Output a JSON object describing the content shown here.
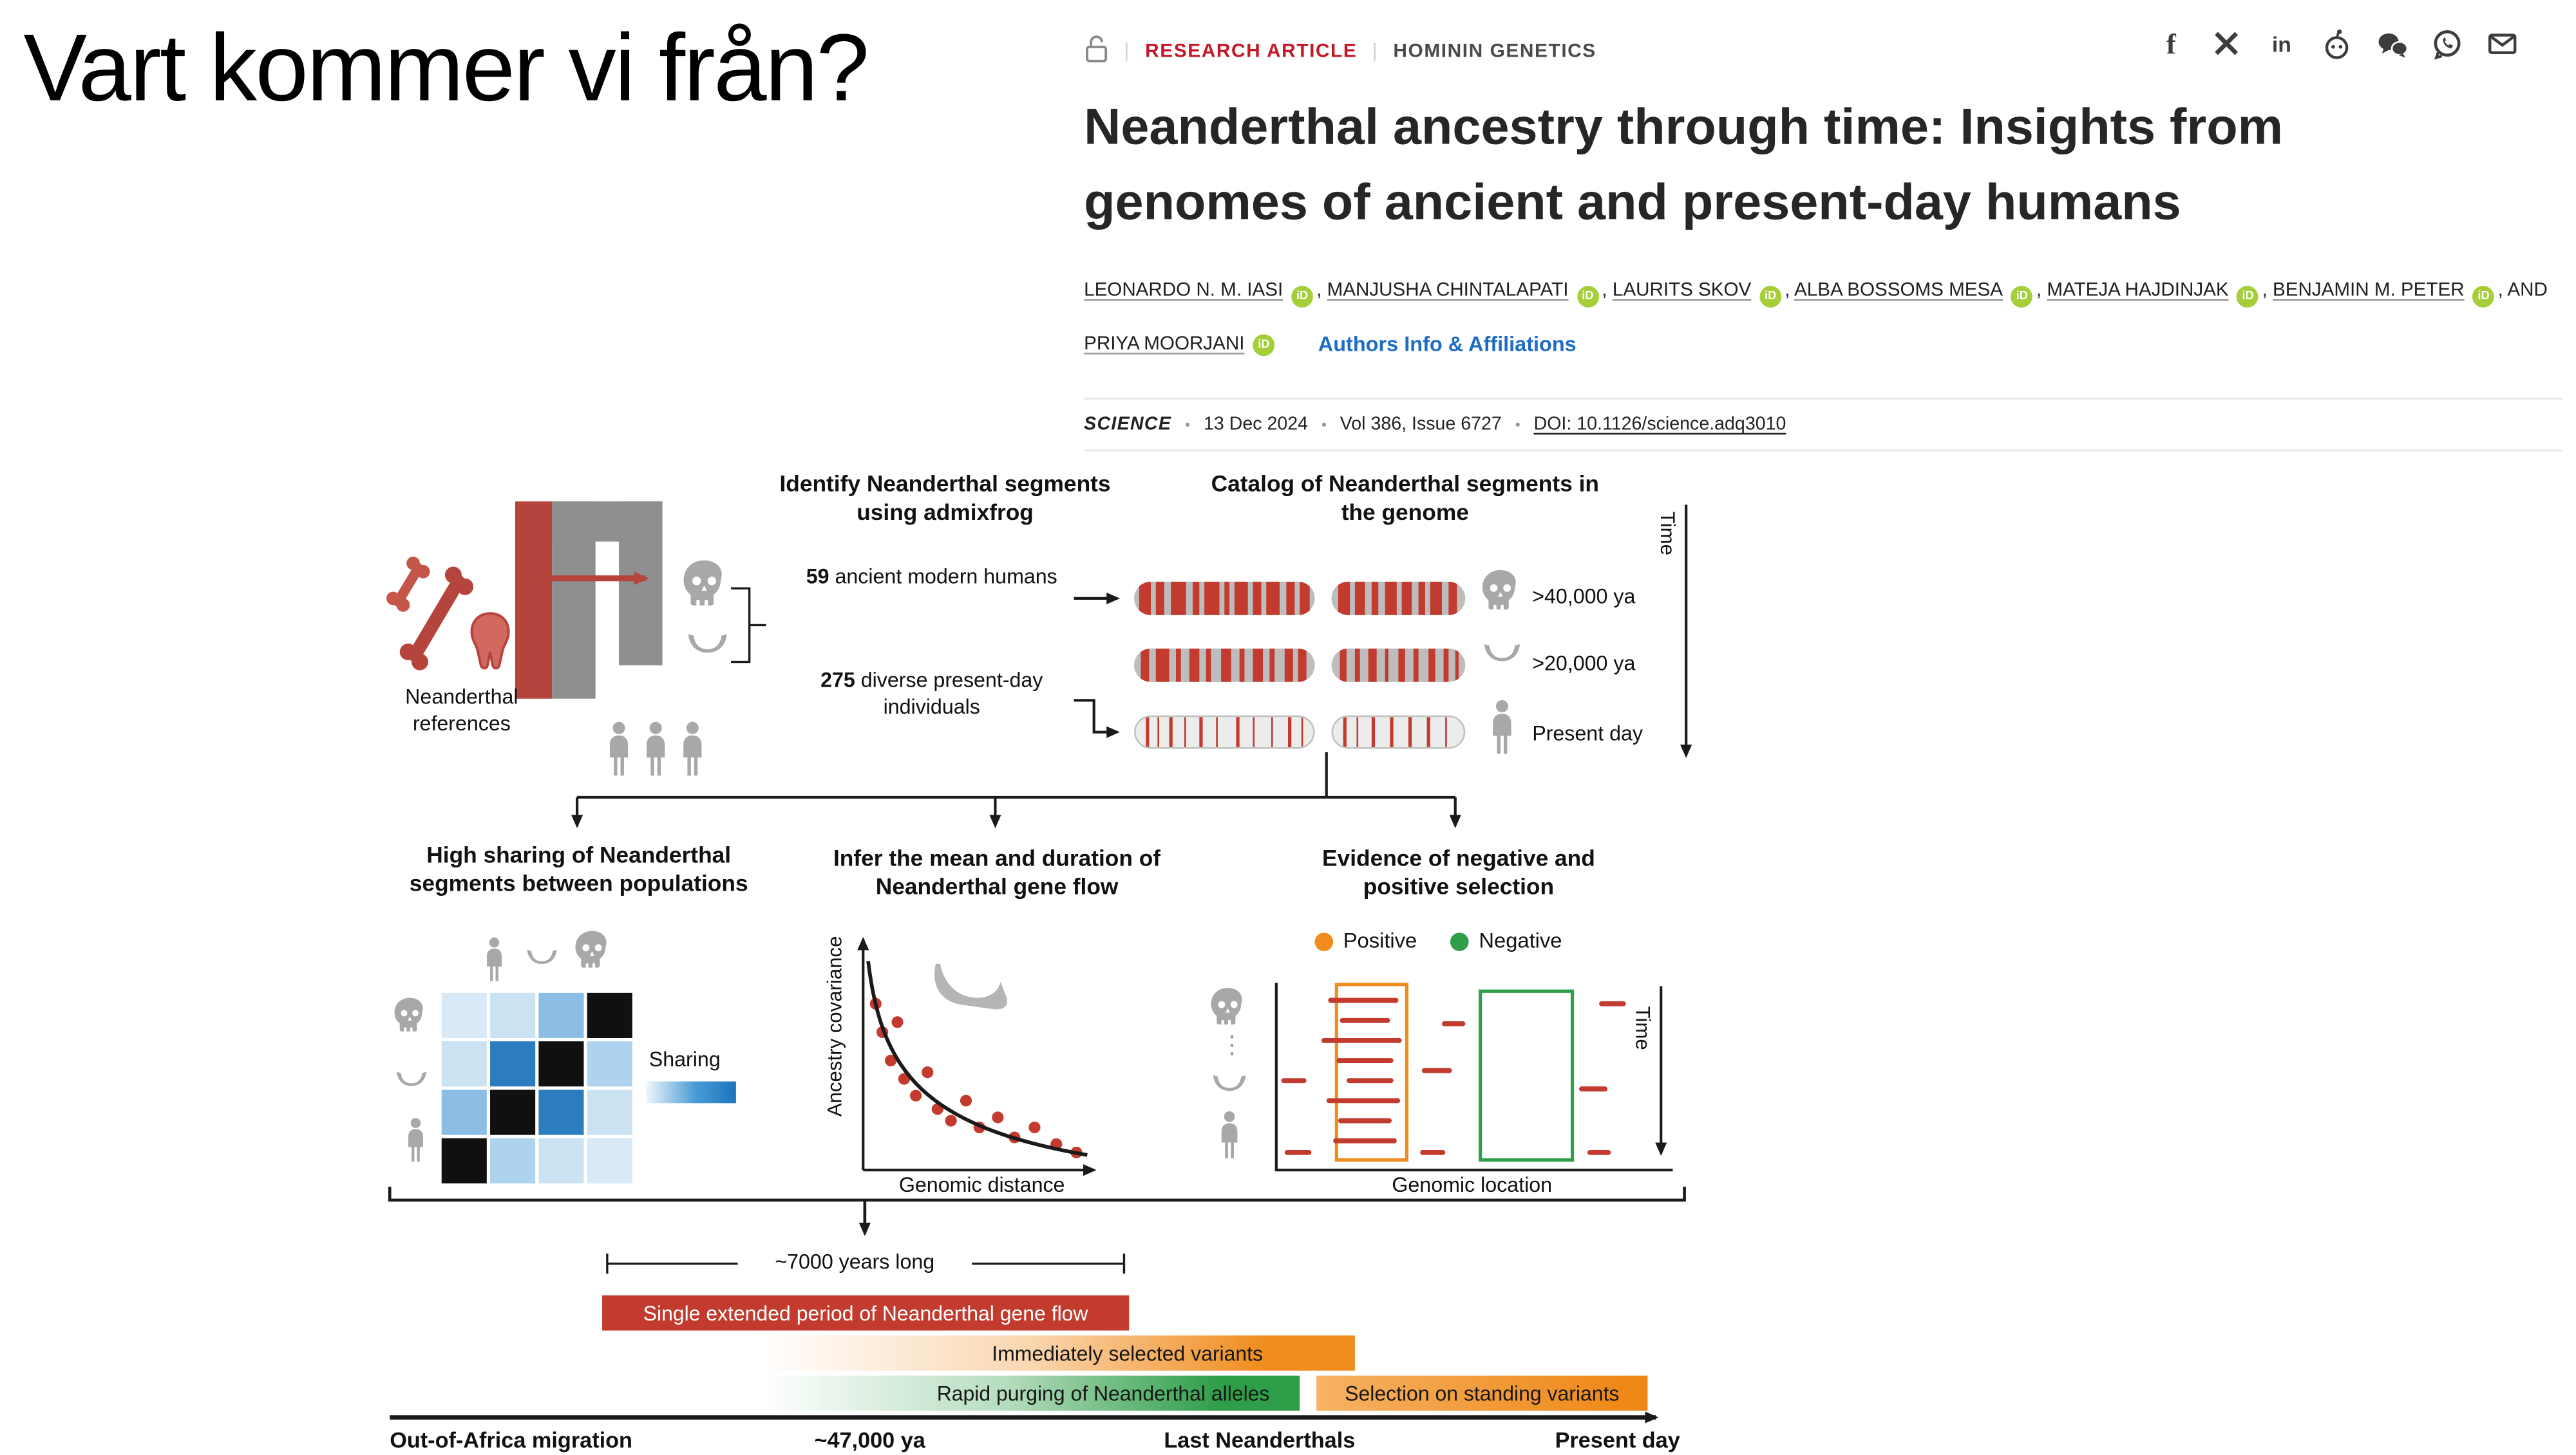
{
  "slide": {
    "title": "Vart kommer vi från?"
  },
  "article": {
    "kicker": {
      "divider": "|",
      "type": "RESEARCH ARTICLE",
      "section": "HOMININ GENETICS"
    },
    "share_icons": [
      "facebook",
      "x",
      "linkedin",
      "reddit",
      "wechat",
      "whatsapp",
      "email"
    ],
    "title": "Neanderthal ancestry through time: Insights from genomes of ancient and present-day humans",
    "authors": [
      "LEONARDO N. M. IASI",
      "MANJUSHA CHINTALAPATI",
      "LAURITS SKOV",
      "ALBA BOSSOMS MESA",
      "MATEJA HAJDINJAK",
      "BENJAMIN M. PETER"
    ],
    "author_separator": ", ",
    "authors_conjunction": ", AND",
    "last_author": "PRIYA MOORJANI",
    "orcid_badge": "iD",
    "affiliations_link": "Authors Info & Affiliations",
    "meta": {
      "journal": "SCIENCE",
      "separator": "•",
      "date": "13 Dec 2024",
      "issue": "Vol 386, Issue 6727",
      "doi": "DOI: 10.1126/science.adq3010"
    }
  },
  "figure": {
    "colors": {
      "red": "#c23b2e",
      "orange": "#f08c1e",
      "green": "#2f9e49",
      "heat_blue": "#2b7dc0",
      "gray_icon": "#a8a8a8"
    },
    "top": {
      "identify_title": "Identify Neanderthal segments using admixfrog",
      "catalog_title": "Catalog of Neanderthal segments in the genome",
      "references_label": "Neanderthal references",
      "ancient_count": "59",
      "ancient_label": " ancient modern humans",
      "present_count": "275",
      "present_label": " diverse present-day individuals",
      "time_label": "Time",
      "catalog_rows": [
        {
          "icon": "skull",
          "label": ">40,000 ya",
          "stripes_a": [
            [
              3,
              6
            ],
            [
              12,
              5
            ],
            [
              20,
              9
            ],
            [
              32,
              4
            ],
            [
              39,
              8
            ],
            [
              50,
              3
            ],
            [
              56,
              7
            ],
            [
              66,
              4
            ],
            [
              73,
              8
            ],
            [
              84,
              5
            ],
            [
              92,
              5
            ]
          ],
          "stripes_b": [
            [
              5,
              9
            ],
            [
              18,
              7
            ],
            [
              30,
              5
            ],
            [
              40,
              9
            ],
            [
              53,
              7
            ],
            [
              65,
              5
            ],
            [
              74,
              8
            ],
            [
              87,
              7
            ]
          ]
        },
        {
          "icon": "jawbone",
          "label": ">20,000 ya",
          "stripes_a": [
            [
              4,
              4
            ],
            [
              12,
              7
            ],
            [
              23,
              3
            ],
            [
              31,
              5
            ],
            [
              40,
              3
            ],
            [
              48,
              6
            ],
            [
              58,
              3
            ],
            [
              66,
              5
            ],
            [
              75,
              3
            ],
            [
              83,
              5
            ],
            [
              91,
              4
            ]
          ],
          "stripes_b": [
            [
              6,
              5
            ],
            [
              17,
              4
            ],
            [
              27,
              7
            ],
            [
              40,
              3
            ],
            [
              50,
              5
            ],
            [
              61,
              4
            ],
            [
              72,
              6
            ],
            [
              84,
              4
            ],
            [
              92,
              3
            ]
          ]
        },
        {
          "icon": "person",
          "label": "Present day",
          "stripes_a": [
            [
              6,
              1.4
            ],
            [
              12,
              1.4
            ],
            [
              19,
              1.4
            ],
            [
              27,
              1.4
            ],
            [
              36,
              1.4
            ],
            [
              45,
              1.4
            ],
            [
              57,
              1.4
            ],
            [
              66,
              1.4
            ],
            [
              76,
              1.4
            ],
            [
              86,
              1.4
            ],
            [
              93,
              1.4
            ]
          ],
          "stripes_b": [
            [
              8,
              1.8
            ],
            [
              18,
              1.8
            ],
            [
              30,
              1.8
            ],
            [
              44,
              1.8
            ],
            [
              58,
              1.8
            ],
            [
              72,
              1.8
            ],
            [
              86,
              1.8
            ]
          ]
        }
      ]
    },
    "panel_sharing": {
      "title": "High sharing of Neanderthal segments between populations",
      "legend_label": "Sharing",
      "matrix": [
        [
          "#d9e9f6",
          "#cbe2f3",
          "#8cbde4",
          "#101010"
        ],
        [
          "#cbe2f3",
          "#2b7dc0",
          "#101010",
          "#aed3ee"
        ],
        [
          "#8cbde4",
          "#101010",
          "#2b7dc0",
          "#cbe2f3"
        ],
        [
          "#101010",
          "#aed3ee",
          "#cbe2f3",
          "#d9e9f6"
        ]
      ]
    },
    "panel_geneflow": {
      "title": "Infer the mean and duration of Neanderthal gene flow",
      "ylabel": "Ancestry covariance",
      "xlabel": "Genomic distance",
      "points": [
        [
          523,
          600
        ],
        [
          527,
          617
        ],
        [
          532,
          634
        ],
        [
          536,
          611
        ],
        [
          540,
          645
        ],
        [
          547,
          655
        ],
        [
          554,
          641
        ],
        [
          560,
          663
        ],
        [
          568,
          670
        ],
        [
          577,
          658
        ],
        [
          585,
          674
        ],
        [
          596,
          668
        ],
        [
          606,
          680
        ],
        [
          618,
          674
        ],
        [
          631,
          684
        ],
        [
          643,
          689
        ]
      ]
    },
    "panel_selection": {
      "title": "Evidence of negative and positive selection",
      "legend": [
        {
          "label": "Positive",
          "color": "#f08c1e"
        },
        {
          "label": "Negative",
          "color": "#2f9e49"
        }
      ],
      "xlabel": "Genomic location",
      "time_label": "Time",
      "dashes": [
        [
          794,
          597,
          42
        ],
        [
          801,
          609,
          30
        ],
        [
          790,
          621,
          48
        ],
        [
          799,
          633,
          34
        ],
        [
          805,
          645,
          28
        ],
        [
          793,
          657,
          44
        ],
        [
          800,
          669,
          32
        ],
        [
          797,
          681,
          38
        ],
        [
          766,
          645,
          15
        ],
        [
          768,
          688,
          16
        ],
        [
          850,
          639,
          18
        ],
        [
          849,
          688,
          15
        ],
        [
          862,
          611,
          14
        ],
        [
          944,
          650,
          17
        ],
        [
          949,
          688,
          14
        ],
        [
          956,
          599,
          16
        ]
      ]
    },
    "timeline": {
      "duration_label": "~7000 years long",
      "bars": [
        {
          "label": "Single extended period of Neanderthal gene flow",
          "color": "#c23b2e"
        },
        {
          "label": "Immediately selected variants",
          "color": "#f08c1e"
        },
        {
          "label": "Rapid purging of Neanderthal alleles",
          "color": "#2f9e49"
        },
        {
          "label": "Selection on standing variants",
          "color": "#f08c1e"
        }
      ],
      "axis_labels": [
        "Out-of-Africa migration",
        "~47,000 ya",
        "Last Neanderthals",
        "Present day"
      ]
    }
  },
  "chart_data": [
    {
      "type": "scatter",
      "title": "Infer the mean and duration of Neanderthal gene flow",
      "xlabel": "Genomic distance",
      "ylabel": "Ancestry covariance",
      "trend": "exponential decay curve with red points",
      "axis_numeric": false,
      "x": [
        0.05,
        0.08,
        0.11,
        0.14,
        0.17,
        0.22,
        0.26,
        0.31,
        0.36,
        0.42,
        0.48,
        0.56,
        0.63,
        0.71,
        0.8,
        0.88
      ],
      "y": [
        0.71,
        0.59,
        0.47,
        0.64,
        0.39,
        0.32,
        0.42,
        0.26,
        0.21,
        0.3,
        0.19,
        0.23,
        0.14,
        0.19,
        0.11,
        0.08
      ]
    },
    {
      "type": "heatmap",
      "title": "High sharing of Neanderthal segments between populations",
      "legend": "Sharing (white-to-blue gradient; black cells also present)",
      "values_as_colors": [
        [
          "#d9e9f6",
          "#cbe2f3",
          "#8cbde4",
          "#101010"
        ],
        [
          "#cbe2f3",
          "#2b7dc0",
          "#101010",
          "#aed3ee"
        ],
        [
          "#8cbde4",
          "#101010",
          "#2b7dc0",
          "#cbe2f3"
        ],
        [
          "#101010",
          "#aed3ee",
          "#cbe2f3",
          "#d9e9f6"
        ]
      ]
    }
  ]
}
